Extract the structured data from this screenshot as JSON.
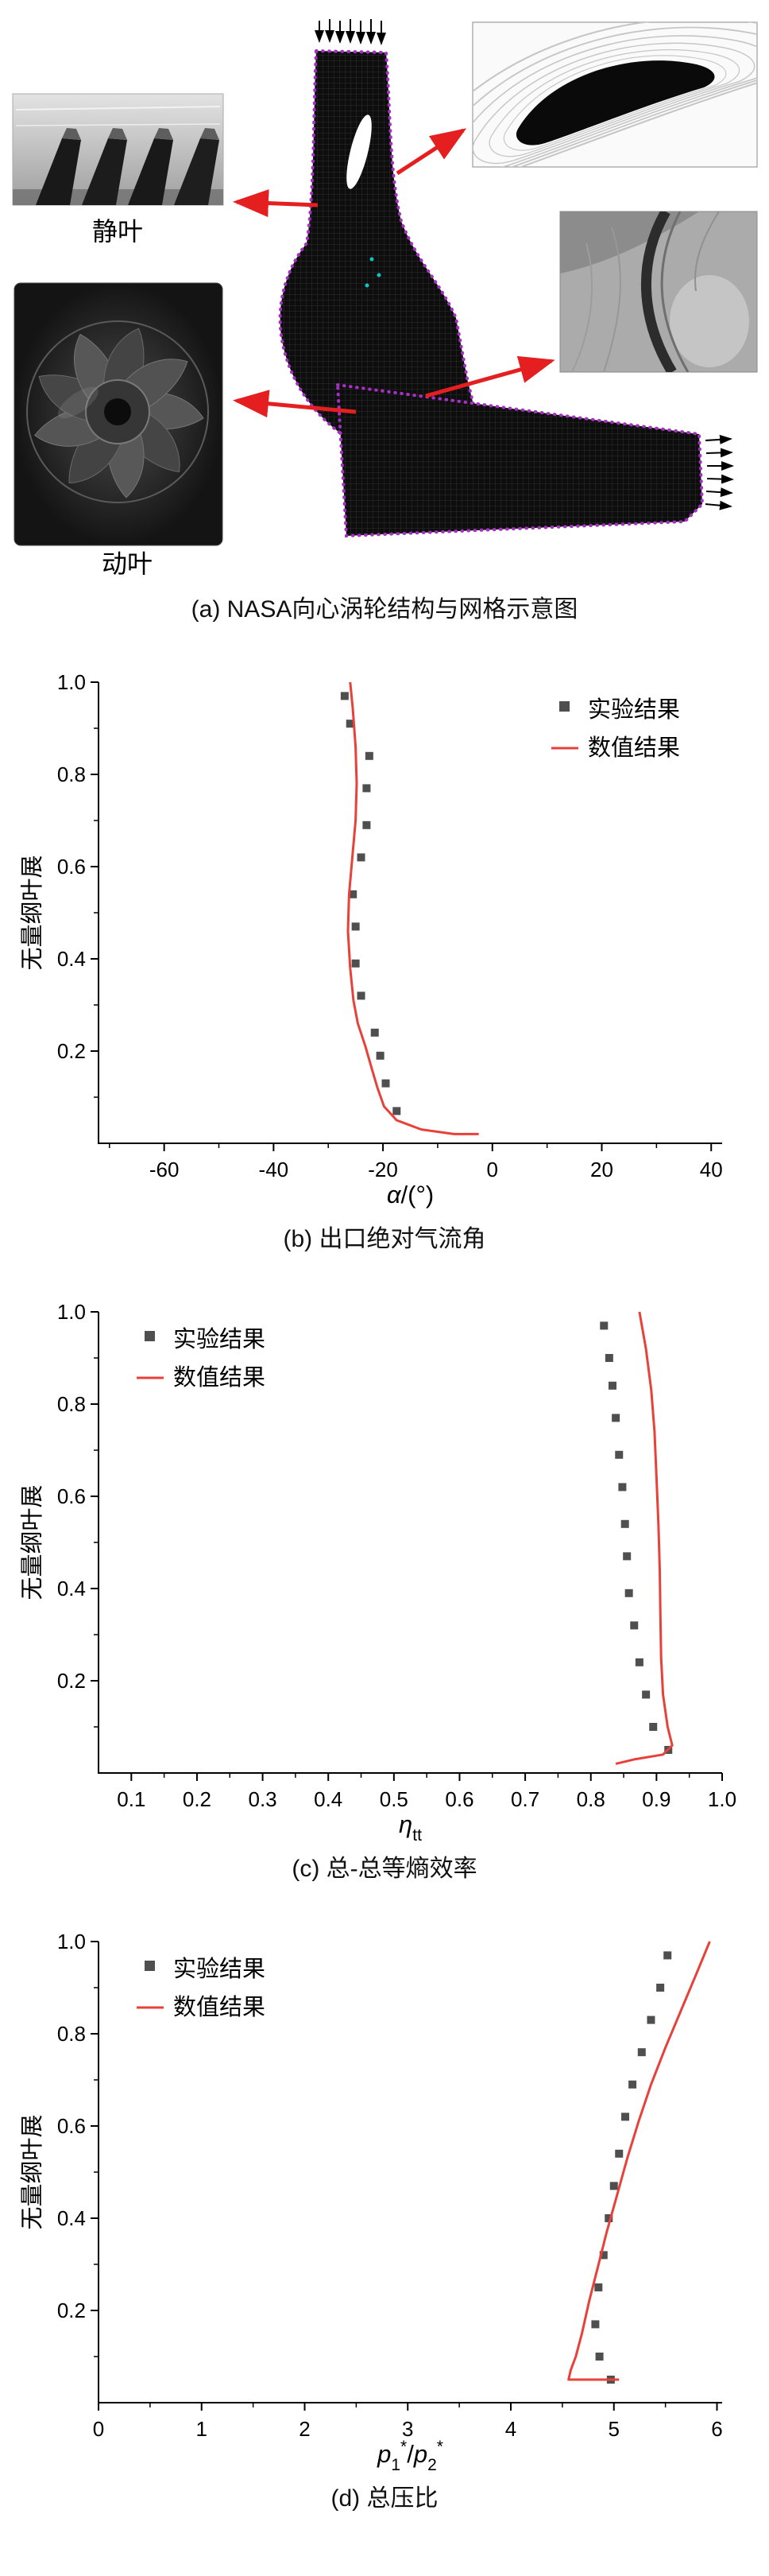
{
  "figure": {
    "background": "#ffffff",
    "accent_red": "#e51f1f",
    "mesh_purple": "#a62fc4",
    "marker_gray": "#4f4f4f",
    "line_red": "#e8413a"
  },
  "panel_a": {
    "caption": "(a) NASA向心涡轮结构与网格示意图",
    "label_stator": "静叶",
    "label_rotor": "动叶",
    "mesh_outline_color": "#a62fc4",
    "arrow_color": "#e51f1f"
  },
  "chart_data": [
    {
      "type": "scatter",
      "caption": "(b) 出口绝对气流角",
      "ylabel": "无量纲叶展",
      "xlabel_text": "α/(°)",
      "xlabel_parts": [
        {
          "t": "α",
          "i": true
        },
        {
          "t": "/(°)"
        }
      ],
      "xlim": [
        -72,
        42
      ],
      "ylim": [
        0,
        1.0
      ],
      "xticks": [
        -60,
        -40,
        -20,
        0,
        20,
        40
      ],
      "xtick_labels": [
        "-60",
        "-40",
        "-20",
        "0",
        "20",
        "40"
      ],
      "xticks_minor": [
        -70,
        -50,
        -30,
        -10,
        10,
        30
      ],
      "yticks": [
        0.2,
        0.4,
        0.6,
        0.8,
        1.0
      ],
      "ytick_labels": [
        "0.2",
        "0.4",
        "0.6",
        "0.8",
        "1.0"
      ],
      "yticks_minor": [
        0.1,
        0.3,
        0.5,
        0.7,
        0.9
      ],
      "legend": {
        "anchor": "top-right"
      },
      "series": [
        {
          "name": "实验结果",
          "type": "scatter",
          "color": "#4f4f4f",
          "points": [
            [
              -27.0,
              0.97
            ],
            [
              -26.0,
              0.91
            ],
            [
              -22.5,
              0.84
            ],
            [
              -23.0,
              0.77
            ],
            [
              -23.0,
              0.69
            ],
            [
              -24.0,
              0.62
            ],
            [
              -25.5,
              0.54
            ],
            [
              -25.0,
              0.47
            ],
            [
              -25.0,
              0.39
            ],
            [
              -24.0,
              0.32
            ],
            [
              -21.5,
              0.24
            ],
            [
              -20.5,
              0.19
            ],
            [
              -19.5,
              0.13
            ],
            [
              -17.5,
              0.07
            ]
          ]
        },
        {
          "name": "数值结果",
          "type": "line",
          "color": "#e8413a",
          "points": [
            [
              -26.0,
              1.0
            ],
            [
              -25.5,
              0.94
            ],
            [
              -25.0,
              0.86
            ],
            [
              -24.8,
              0.78
            ],
            [
              -25.0,
              0.7
            ],
            [
              -25.6,
              0.62
            ],
            [
              -26.2,
              0.54
            ],
            [
              -26.4,
              0.46
            ],
            [
              -26.0,
              0.38
            ],
            [
              -25.4,
              0.31
            ],
            [
              -24.6,
              0.26
            ],
            [
              -23.2,
              0.21
            ],
            [
              -22.0,
              0.16
            ],
            [
              -21.0,
              0.12
            ],
            [
              -19.8,
              0.08
            ],
            [
              -17.5,
              0.05
            ],
            [
              -13.0,
              0.03
            ],
            [
              -7.0,
              0.02
            ],
            [
              -2.5,
              0.02
            ]
          ]
        }
      ]
    },
    {
      "type": "scatter",
      "caption": "(c) 总-总等熵效率",
      "ylabel": "无量纲叶展",
      "xlabel_text": "ηtt",
      "xlabel_parts": [
        {
          "t": "η",
          "i": true
        },
        {
          "t": "tt",
          "sub": true
        }
      ],
      "xlim": [
        0.05,
        1.0
      ],
      "ylim": [
        0,
        1.0
      ],
      "xticks": [
        0.1,
        0.2,
        0.3,
        0.4,
        0.5,
        0.6,
        0.7,
        0.8,
        0.9,
        1.0
      ],
      "xtick_labels": [
        "0.1",
        "0.2",
        "0.3",
        "0.4",
        "0.5",
        "0.6",
        "0.7",
        "0.8",
        "0.9",
        "1.0"
      ],
      "xticks_minor": [
        0.15,
        0.25,
        0.35,
        0.45,
        0.55,
        0.65,
        0.75,
        0.85,
        0.95
      ],
      "yticks": [
        0.2,
        0.4,
        0.6,
        0.8,
        1.0
      ],
      "ytick_labels": [
        "0.2",
        "0.4",
        "0.6",
        "0.8",
        "1.0"
      ],
      "yticks_minor": [
        0.1,
        0.3,
        0.5,
        0.7,
        0.9
      ],
      "legend": {
        "anchor": "top-left"
      },
      "series": [
        {
          "name": "实验结果",
          "type": "scatter",
          "color": "#4f4f4f",
          "points": [
            [
              0.82,
              0.97
            ],
            [
              0.828,
              0.9
            ],
            [
              0.833,
              0.84
            ],
            [
              0.838,
              0.77
            ],
            [
              0.843,
              0.69
            ],
            [
              0.848,
              0.62
            ],
            [
              0.852,
              0.54
            ],
            [
              0.855,
              0.47
            ],
            [
              0.858,
              0.39
            ],
            [
              0.866,
              0.32
            ],
            [
              0.874,
              0.24
            ],
            [
              0.884,
              0.17
            ],
            [
              0.895,
              0.1
            ],
            [
              0.918,
              0.05
            ]
          ]
        },
        {
          "name": "数值结果",
          "type": "line",
          "color": "#e8413a",
          "points": [
            [
              0.874,
              1.0
            ],
            [
              0.884,
              0.92
            ],
            [
              0.892,
              0.83
            ],
            [
              0.897,
              0.74
            ],
            [
              0.9,
              0.64
            ],
            [
              0.903,
              0.54
            ],
            [
              0.905,
              0.44
            ],
            [
              0.906,
              0.34
            ],
            [
              0.907,
              0.25
            ],
            [
              0.91,
              0.17
            ],
            [
              0.917,
              0.1
            ],
            [
              0.924,
              0.06
            ],
            [
              0.91,
              0.04
            ],
            [
              0.868,
              0.03
            ],
            [
              0.838,
              0.02
            ]
          ]
        }
      ]
    },
    {
      "type": "scatter",
      "caption": "(d) 总压比",
      "ylabel": "无量纲叶展",
      "xlabel_text": "p1*/p2*",
      "xlabel_parts": [
        {
          "t": "p",
          "i": true
        },
        {
          "t": "1",
          "sub": true
        },
        {
          "t": "*",
          "sup": true
        },
        {
          "t": "/"
        },
        {
          "t": "p",
          "i": true
        },
        {
          "t": "2",
          "sub": true
        },
        {
          "t": "*",
          "sup": true
        }
      ],
      "xlim": [
        0,
        6.05
      ],
      "ylim": [
        0,
        1.0
      ],
      "xticks": [
        0,
        1,
        2,
        3,
        4,
        5,
        6
      ],
      "xtick_labels": [
        "0",
        "1",
        "2",
        "3",
        "4",
        "5",
        "6"
      ],
      "xticks_minor": [
        0.5,
        1.5,
        2.5,
        3.5,
        4.5,
        5.5
      ],
      "yticks": [
        0.2,
        0.4,
        0.6,
        0.8,
        1.0
      ],
      "ytick_labels": [
        "0.2",
        "0.4",
        "0.6",
        "0.8",
        "1.0"
      ],
      "yticks_minor": [
        0.1,
        0.3,
        0.5,
        0.7,
        0.9
      ],
      "legend": {
        "anchor": "top-left"
      },
      "series": [
        {
          "name": "实验结果",
          "type": "scatter",
          "color": "#4f4f4f",
          "points": [
            [
              5.52,
              0.97
            ],
            [
              5.45,
              0.9
            ],
            [
              5.36,
              0.83
            ],
            [
              5.27,
              0.76
            ],
            [
              5.18,
              0.69
            ],
            [
              5.11,
              0.62
            ],
            [
              5.05,
              0.54
            ],
            [
              5.0,
              0.47
            ],
            [
              4.95,
              0.4
            ],
            [
              4.9,
              0.32
            ],
            [
              4.85,
              0.25
            ],
            [
              4.82,
              0.17
            ],
            [
              4.86,
              0.1
            ],
            [
              4.97,
              0.05
            ]
          ]
        },
        {
          "name": "数值结果",
          "type": "line",
          "color": "#e8413a",
          "points": [
            [
              5.93,
              1.0
            ],
            [
              5.8,
              0.93
            ],
            [
              5.65,
              0.85
            ],
            [
              5.5,
              0.77
            ],
            [
              5.36,
              0.69
            ],
            [
              5.24,
              0.61
            ],
            [
              5.13,
              0.53
            ],
            [
              5.03,
              0.45
            ],
            [
              4.93,
              0.37
            ],
            [
              4.84,
              0.29
            ],
            [
              4.76,
              0.22
            ],
            [
              4.69,
              0.15
            ],
            [
              4.63,
              0.1
            ],
            [
              4.58,
              0.07
            ],
            [
              4.56,
              0.05
            ],
            [
              5.05,
              0.05
            ]
          ]
        }
      ]
    }
  ]
}
